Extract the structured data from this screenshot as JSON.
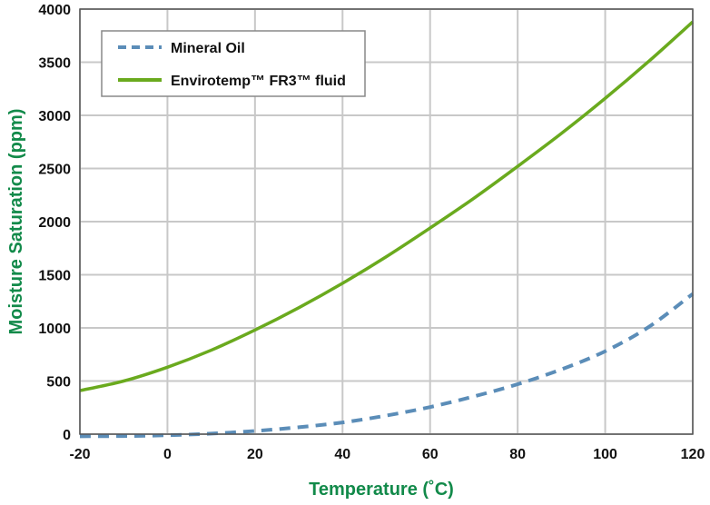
{
  "chart_data": {
    "type": "line",
    "xlabel": "Temperature (˚C)",
    "ylabel": "Moisture Saturation (ppm)",
    "xlim": [
      -20,
      120
    ],
    "ylim": [
      0,
      4000
    ],
    "x_ticks": [
      "-20",
      "0",
      "20",
      "40",
      "60",
      "80",
      "100",
      "120"
    ],
    "y_ticks": [
      "0",
      "500",
      "1000",
      "1500",
      "2000",
      "2500",
      "3000",
      "3500",
      "4000"
    ],
    "grid": true,
    "legend_position": "top-left",
    "axis_label_color": "#128a4a",
    "series": [
      {
        "name": "Mineral Oil",
        "style": "dashed",
        "color": "#5b8db8",
        "x": [
          -20,
          -10,
          0,
          10,
          20,
          30,
          40,
          50,
          60,
          70,
          80,
          90,
          100,
          110,
          120
        ],
        "values": [
          -20,
          -18,
          -10,
          5,
          30,
          65,
          110,
          175,
          255,
          355,
          470,
          610,
          780,
          1010,
          1320
        ]
      },
      {
        "name": "Envirotemp™ FR3™ fluid",
        "style": "solid",
        "color": "#6aaa1e",
        "x": [
          -20,
          -10,
          0,
          10,
          20,
          30,
          40,
          50,
          60,
          70,
          80,
          90,
          100,
          110,
          120
        ],
        "values": [
          410,
          500,
          630,
          790,
          980,
          1190,
          1420,
          1670,
          1940,
          2220,
          2520,
          2830,
          3160,
          3510,
          3880
        ]
      }
    ]
  }
}
